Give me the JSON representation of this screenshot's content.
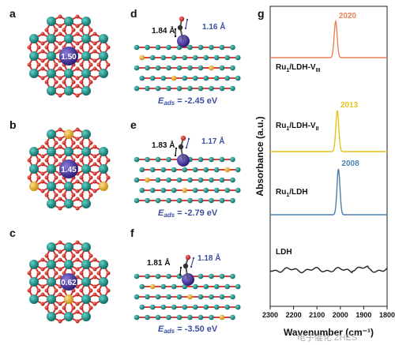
{
  "panels": {
    "a": {
      "letter": "a",
      "value": "1.50"
    },
    "b": {
      "letter": "b",
      "value": "1.45"
    },
    "c": {
      "letter": "c",
      "value": "0.62"
    },
    "d": {
      "letter": "d",
      "bond1": "1.84 Å",
      "bond2": "1.16 Å",
      "eads_label": "E",
      "eads_sub": "ads",
      "eads_value": " = -2.45 eV"
    },
    "e": {
      "letter": "e",
      "bond1": "1.83 Å",
      "bond2": "1.17 Å",
      "eads_label": "E",
      "eads_sub": "ads",
      "eads_value": " = -2.79 eV"
    },
    "f": {
      "letter": "f",
      "bond1": "1.81 Å",
      "bond2": "1.18 Å",
      "eads_label": "E",
      "eads_sub": "ads",
      "eads_value": " = -3.50 eV"
    },
    "g": {
      "letter": "g"
    }
  },
  "colors": {
    "ni_teal": "#1b8f87",
    "fe_gold": "#f1b324",
    "ru_purple": "#4b3a9c",
    "oxygen_red": "#d9302c",
    "bond_blue": "#3a4fa0"
  },
  "chart_data": {
    "type": "line",
    "xlabel": "Wavenumber (cm⁻¹)",
    "ylabel": "Absorbance (a.u.)",
    "xlim": [
      2300,
      1800
    ],
    "x_ticks": [
      "2300",
      "2200",
      "2100",
      "2000",
      "1900",
      "1800"
    ],
    "series": [
      {
        "name": "Ru₁/LDH-Vᴵᴵᴵ",
        "label_main": "Ru",
        "label_sub": "1",
        "label_rest": "/LDH-V",
        "label_rest_sub": "III",
        "peak_label": "2020",
        "peak_x": 2020,
        "color": "#e8825a"
      },
      {
        "name": "Ru₁/LDH-Vᴵᴵ",
        "label_main": "Ru",
        "label_sub": "1",
        "label_rest": "/LDH-V",
        "label_rest_sub": "II",
        "peak_label": "2013",
        "peak_x": 2013,
        "color": "#e6c31c"
      },
      {
        "name": "Ru₁/LDH",
        "label_main": "Ru",
        "label_sub": "1",
        "label_rest": "/LDH",
        "label_rest_sub": "",
        "peak_label": "2008",
        "peak_x": 2008,
        "color": "#4a7fb0"
      },
      {
        "name": "LDH",
        "label_main": "LDH",
        "label_sub": "",
        "label_rest": "",
        "label_rest_sub": "",
        "peak_label": "",
        "peak_x": null,
        "color": "#222222"
      }
    ],
    "watermark": "电子催化 ZHES"
  }
}
